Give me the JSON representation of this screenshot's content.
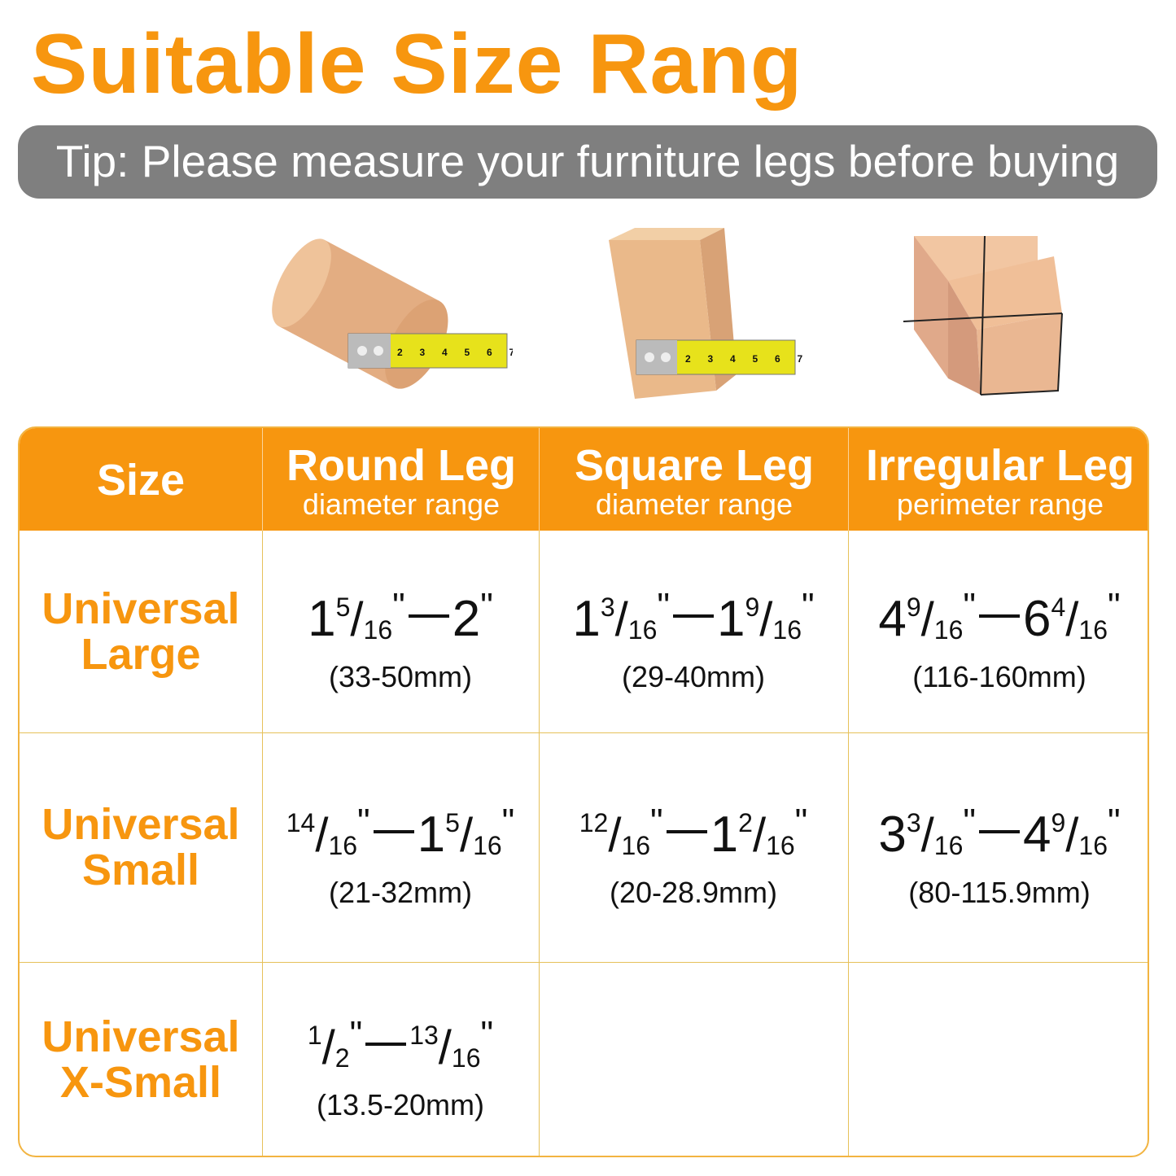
{
  "title": "Suitable Size Rang",
  "tip": "Tip: Please measure your furniture legs before buying",
  "colors": {
    "accent": "#f7960f",
    "tip_bg": "#7f7f7f",
    "grid": "#e6c15a",
    "wood": "#e9b98f"
  },
  "images": [
    {
      "icon": "round-leg-with-tape-measure"
    },
    {
      "icon": "square-leg-with-tape-measure"
    },
    {
      "icon": "irregular-leg-with-string"
    }
  ],
  "tape_numbers": [
    "2",
    "3",
    "4",
    "5",
    "6",
    "7"
  ],
  "table": {
    "headers": [
      {
        "main": "Size",
        "sub": ""
      },
      {
        "main": "Round Leg",
        "sub": "diameter range"
      },
      {
        "main": "Square Leg",
        "sub": "diameter range"
      },
      {
        "main": "Irregular Leg",
        "sub": "perimeter range"
      }
    ],
    "rows": [
      {
        "label1": "Universal",
        "label2": "Large",
        "cells": [
          {
            "from": {
              "w": "1",
              "n": "5",
              "d": "16"
            },
            "to": {
              "w": "2",
              "n": "",
              "d": ""
            },
            "mm": "(33-50mm)"
          },
          {
            "from": {
              "w": "1",
              "n": "3",
              "d": "16"
            },
            "to": {
              "w": "1",
              "n": "9",
              "d": "16"
            },
            "mm": "(29-40mm)"
          },
          {
            "from": {
              "w": "4",
              "n": "9",
              "d": "16"
            },
            "to": {
              "w": "6",
              "n": "4",
              "d": "16"
            },
            "mm": "(116-160mm)"
          }
        ]
      },
      {
        "label1": "Universal",
        "label2": "Small",
        "cells": [
          {
            "from": {
              "w": "",
              "n": "14",
              "d": "16"
            },
            "to": {
              "w": "1",
              "n": "5",
              "d": "16"
            },
            "mm": "(21-32mm)"
          },
          {
            "from": {
              "w": "",
              "n": "12",
              "d": "16"
            },
            "to": {
              "w": "1",
              "n": "2",
              "d": "16"
            },
            "mm": "(20-28.9mm)"
          },
          {
            "from": {
              "w": "3",
              "n": "3",
              "d": "16"
            },
            "to": {
              "w": "4",
              "n": "9",
              "d": "16"
            },
            "mm": "(80-115.9mm)"
          }
        ]
      },
      {
        "label1": "Universal",
        "label2": "X-Small",
        "cells": [
          {
            "from": {
              "w": "",
              "n": "1",
              "d": "2"
            },
            "to": {
              "w": "",
              "n": "13",
              "d": "16"
            },
            "mm": "(13.5-20mm)"
          },
          null,
          null
        ]
      }
    ]
  }
}
